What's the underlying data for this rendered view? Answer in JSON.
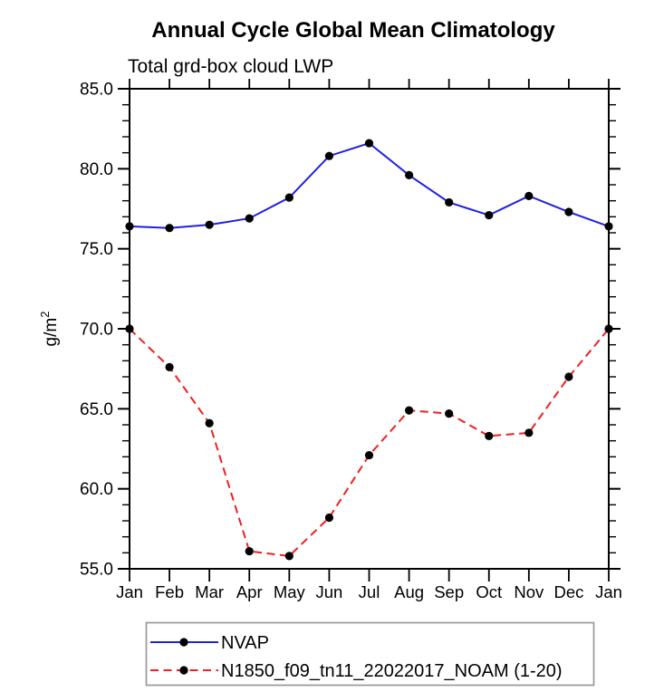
{
  "title": "Annual Cycle Global Mean Climatology",
  "subtitle": "Total grd-box cloud LWP",
  "axes": {
    "ylabel_main": "g/m",
    "ylabel_sup": "2",
    "ylabel_full": "g/m²"
  },
  "colors": {
    "series1": "#2020e0",
    "series2": "#ee2020",
    "marker": "#000000",
    "axis": "#000000",
    "legend_border": "#999999"
  },
  "chart_data": {
    "type": "line",
    "title": "Annual Cycle Global Mean Climatology",
    "subtitle": "Total grd-box cloud LWP",
    "xlabel": "",
    "ylabel": "g/m²",
    "categories": [
      "Jan",
      "Feb",
      "Mar",
      "Apr",
      "May",
      "Jun",
      "Jul",
      "Aug",
      "Sep",
      "Oct",
      "Nov",
      "Dec",
      "Jan"
    ],
    "series": [
      {
        "name": "NVAP",
        "color": "#2020e0",
        "line_style": "solid",
        "marker": "filled-circle",
        "marker_color": "#000000",
        "values": [
          76.4,
          76.3,
          76.5,
          76.9,
          78.2,
          80.8,
          81.6,
          79.6,
          77.9,
          77.1,
          78.3,
          77.3,
          76.4
        ]
      },
      {
        "name": "N1850_f09_tn11_22022017_NOAM (1-20)",
        "color": "#ee2020",
        "line_style": "dashed",
        "marker": "filled-circle",
        "marker_color": "#000000",
        "values": [
          70.0,
          67.6,
          64.1,
          56.1,
          55.8,
          58.2,
          62.1,
          64.9,
          64.7,
          63.3,
          63.5,
          67.0,
          70.0
        ]
      }
    ],
    "ylim": [
      55.0,
      85.0
    ],
    "ytick_major_values": [
      55,
      60,
      65,
      70,
      75,
      80,
      85
    ],
    "ytick_major_labels": [
      "55.0",
      "60.0",
      "65.0",
      "70.0",
      "75.0",
      "80.0",
      "85.0"
    ],
    "ytick_minor_step": 1,
    "grid": false,
    "ticks": "outward-all-four-sides",
    "legend_position": "below-plot-boxed"
  }
}
